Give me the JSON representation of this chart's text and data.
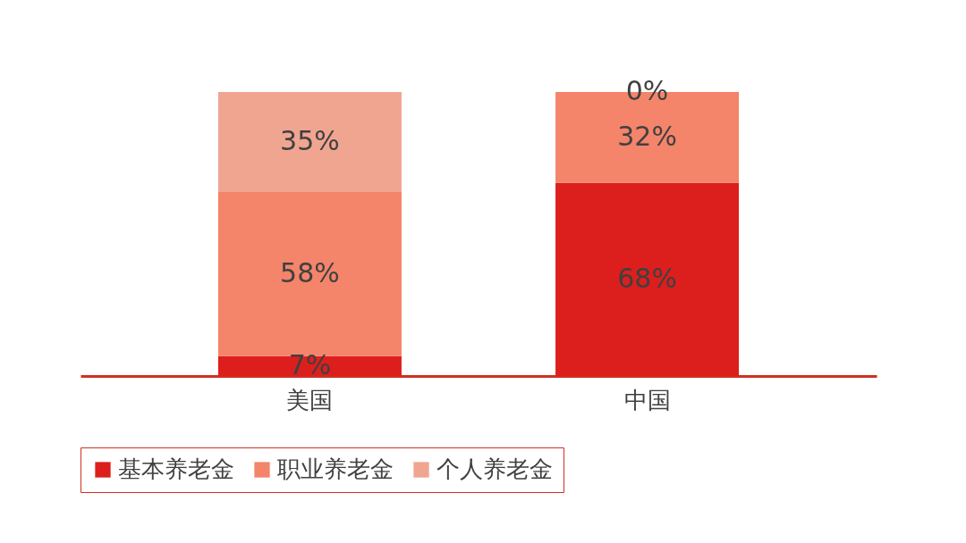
{
  "chart_data": {
    "type": "bar",
    "stacked": true,
    "categories": [
      "美国",
      "中国"
    ],
    "series": [
      {
        "name": "基本养老金",
        "color": "#dc1f1d",
        "values": [
          7,
          68
        ],
        "value_labels": [
          "7%",
          "68%"
        ]
      },
      {
        "name": "职业养老金",
        "color": "#f4846a",
        "values": [
          58,
          32
        ],
        "value_labels": [
          "58%",
          "32%"
        ]
      },
      {
        "name": "个人养老金",
        "color": "#f0a591",
        "values": [
          35,
          0
        ],
        "value_labels": [
          "35%",
          "0%"
        ]
      }
    ],
    "legend": "bottom",
    "grid": false
  }
}
